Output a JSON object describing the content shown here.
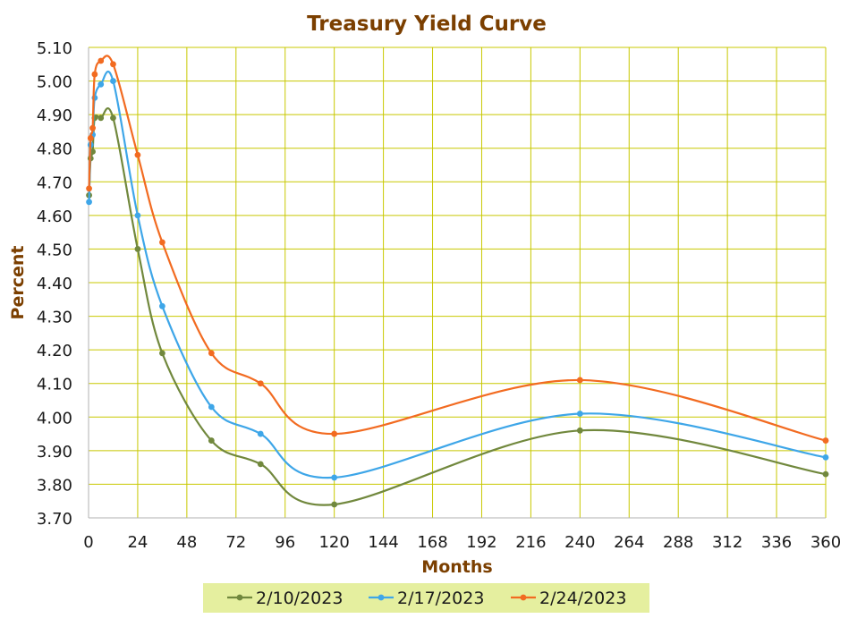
{
  "chart_data": {
    "type": "line",
    "title": "Treasury Yield Curve",
    "xlabel": "Months",
    "ylabel": "Percent",
    "xlim": [
      0,
      360
    ],
    "ylim": [
      3.7,
      5.1
    ],
    "x_ticks": [
      0,
      24,
      48,
      72,
      96,
      120,
      144,
      168,
      192,
      216,
      240,
      264,
      288,
      312,
      336,
      360
    ],
    "x_tick_labels": [
      "0",
      "24",
      "48",
      "72",
      "96",
      "120",
      "144",
      "168",
      "192",
      "216",
      "240",
      "264",
      "288",
      "312",
      "336",
      "360"
    ],
    "y_ticks": [
      3.7,
      3.8,
      3.9,
      4.0,
      4.1,
      4.2,
      4.3,
      4.4,
      4.5,
      4.6,
      4.7,
      4.8,
      4.9,
      5.0,
      5.1
    ],
    "y_tick_labels": [
      "3.70",
      "3.80",
      "3.90",
      "4.00",
      "4.10",
      "4.20",
      "4.30",
      "4.40",
      "4.50",
      "4.60",
      "4.70",
      "4.80",
      "4.90",
      "5.00",
      "5.10"
    ],
    "grid": true,
    "legend_position": "bottom",
    "x": [
      0.25,
      1,
      2,
      3,
      6,
      12,
      24,
      36,
      60,
      84,
      120,
      240,
      360
    ],
    "series": [
      {
        "name": "2/10/2023",
        "color": "#71883d",
        "values": [
          4.66,
          4.77,
          4.79,
          4.89,
          4.89,
          4.89,
          4.5,
          4.19,
          3.93,
          3.86,
          3.74,
          3.96,
          3.83
        ]
      },
      {
        "name": "2/17/2023",
        "color": "#3ea6e8",
        "values": [
          4.64,
          4.81,
          4.84,
          4.95,
          4.99,
          5.0,
          4.6,
          4.33,
          4.03,
          3.95,
          3.82,
          4.01,
          3.88
        ]
      },
      {
        "name": "2/24/2023",
        "color": "#f26b21",
        "values": [
          4.68,
          4.83,
          4.86,
          5.02,
          5.06,
          5.05,
          4.78,
          4.52,
          4.19,
          4.1,
          3.95,
          4.11,
          3.93
        ]
      }
    ]
  },
  "colors": {
    "title": "#7b3f00",
    "axis_label": "#7b3f00",
    "grid": "#c8c800",
    "legend_background": "#e5ef9f",
    "tick_text": "#1a1a1a"
  }
}
